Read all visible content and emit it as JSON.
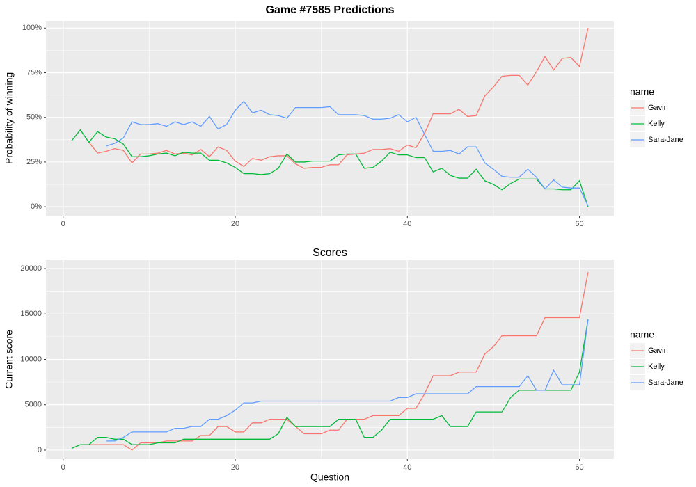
{
  "chart_data": [
    {
      "type": "line",
      "title": "Game #7585 Predictions",
      "ylabel": "Probability of winning",
      "legend_title": "name",
      "legend": "right",
      "grid": true,
      "x": [
        1,
        2,
        3,
        4,
        5,
        6,
        7,
        8,
        9,
        10,
        11,
        12,
        13,
        14,
        15,
        16,
        17,
        18,
        19,
        20,
        21,
        22,
        23,
        24,
        25,
        26,
        27,
        28,
        29,
        30,
        31,
        32,
        33,
        34,
        35,
        36,
        37,
        38,
        39,
        40,
        41,
        42,
        43,
        44,
        45,
        46,
        47,
        48,
        49,
        50,
        51,
        52,
        53,
        54,
        55,
        56,
        57,
        58,
        59,
        60,
        61
      ],
      "xlim": [
        -2,
        64
      ],
      "xticks": [
        0,
        20,
        40,
        60
      ],
      "ylim": [
        -5,
        104
      ],
      "yticks": [
        {
          "value": 0,
          "label": "0%"
        },
        {
          "value": 25,
          "label": "25%"
        },
        {
          "value": 50,
          "label": "50%"
        },
        {
          "value": 75,
          "label": "75%"
        },
        {
          "value": 100,
          "label": "100%"
        }
      ],
      "series": [
        {
          "name": "Gavin",
          "color": "#F8766D",
          "values": [
            null,
            null,
            36,
            30,
            31,
            32.5,
            31.5,
            24.5,
            29.5,
            29.5,
            30,
            31.5,
            29.5,
            30,
            29,
            32,
            28,
            33.5,
            31.5,
            25.5,
            22.5,
            27,
            26,
            28,
            28.5,
            28.5,
            24,
            21.5,
            22,
            22,
            23.5,
            23.5,
            29,
            29.5,
            30,
            32,
            32,
            32.5,
            31,
            34.5,
            33,
            41,
            52,
            52,
            52,
            54.5,
            50.5,
            51,
            62,
            67,
            73,
            73.5,
            73.5,
            68,
            75.5,
            84,
            76.5,
            83,
            83.5,
            78.5,
            100
          ]
        },
        {
          "name": "Kelly",
          "color": "#00BA38",
          "values": [
            37,
            43,
            36,
            42,
            39,
            38,
            35,
            28,
            28,
            28.5,
            29.5,
            30,
            28.5,
            30.5,
            30,
            30,
            26,
            26,
            24.5,
            22,
            18.5,
            18.5,
            18,
            18.5,
            21.5,
            29.5,
            25,
            25,
            25.5,
            25.5,
            25.5,
            29,
            29.5,
            29.5,
            21.5,
            22,
            25.5,
            30.5,
            29,
            29,
            27.5,
            27.5,
            19.5,
            21.5,
            17.5,
            16,
            16,
            21,
            14.5,
            12.5,
            9.5,
            13,
            15.5,
            15.5,
            15.5,
            10,
            10,
            9.5,
            9.5,
            14.5,
            0
          ]
        },
        {
          "name": "Sara-Jane",
          "color": "#619CFF",
          "values": [
            null,
            null,
            null,
            null,
            34,
            35.5,
            38.5,
            47.5,
            46,
            46,
            46.5,
            45,
            47.5,
            46,
            47.5,
            45,
            50.5,
            43.5,
            46,
            54,
            59,
            52.5,
            54,
            51.5,
            51,
            49.5,
            55.5,
            55.5,
            55.5,
            55.5,
            56,
            51.5,
            51.5,
            51.5,
            51,
            49,
            49,
            49.5,
            51.5,
            47.5,
            50,
            40.5,
            31,
            31,
            31.5,
            29.5,
            33.5,
            33.5,
            24.5,
            21,
            17,
            16.5,
            16.5,
            21,
            16.5,
            10,
            15,
            11,
            10.5,
            10.5,
            0.5
          ]
        }
      ]
    },
    {
      "type": "line",
      "title": "Scores",
      "xlabel": "Question",
      "ylabel": "Current score",
      "legend_title": "name",
      "legend": "right",
      "grid": true,
      "x": [
        1,
        2,
        3,
        4,
        5,
        6,
        7,
        8,
        9,
        10,
        11,
        12,
        13,
        14,
        15,
        16,
        17,
        18,
        19,
        20,
        21,
        22,
        23,
        24,
        25,
        26,
        27,
        28,
        29,
        30,
        31,
        32,
        33,
        34,
        35,
        36,
        37,
        38,
        39,
        40,
        41,
        42,
        43,
        44,
        45,
        46,
        47,
        48,
        49,
        50,
        51,
        52,
        53,
        54,
        55,
        56,
        57,
        58,
        59,
        60,
        61
      ],
      "xlim": [
        -2,
        64
      ],
      "xticks": [
        0,
        20,
        40,
        60
      ],
      "ylim": [
        -1000,
        21000
      ],
      "yticks": [
        0,
        5000,
        10000,
        15000,
        20000
      ],
      "series": [
        {
          "name": "Gavin",
          "color": "#F8766D",
          "values": [
            null,
            null,
            600,
            600,
            600,
            600,
            600,
            0,
            800,
            800,
            800,
            1000,
            1000,
            1000,
            1000,
            1600,
            1600,
            2600,
            2600,
            2000,
            2000,
            3000,
            3000,
            3400,
            3400,
            3400,
            2600,
            1800,
            1800,
            1800,
            2200,
            2200,
            3400,
            3400,
            3400,
            3800,
            3800,
            3800,
            3800,
            4600,
            4600,
            6200,
            8200,
            8200,
            8200,
            8600,
            8600,
            8600,
            10600,
            11400,
            12600,
            12600,
            12600,
            12600,
            12600,
            14600,
            14600,
            14600,
            14600,
            14600,
            19600
          ]
        },
        {
          "name": "Kelly",
          "color": "#00BA38",
          "values": [
            200,
            600,
            600,
            1400,
            1400,
            1200,
            1200,
            600,
            600,
            600,
            800,
            800,
            800,
            1200,
            1200,
            1200,
            1200,
            1200,
            1200,
            1200,
            1200,
            1200,
            1200,
            1200,
            1800,
            3600,
            2600,
            2600,
            2600,
            2600,
            2600,
            3400,
            3400,
            3400,
            1400,
            1400,
            2200,
            3400,
            3400,
            3400,
            3400,
            3400,
            3400,
            3800,
            2600,
            2600,
            2600,
            4200,
            4200,
            4200,
            4200,
            5800,
            6600,
            6600,
            6600,
            6600,
            6600,
            6600,
            6600,
            8600,
            14400
          ]
        },
        {
          "name": "Sara-Jane",
          "color": "#619CFF",
          "values": [
            null,
            null,
            null,
            null,
            1000,
            1000,
            1400,
            2000,
            2000,
            2000,
            2000,
            2000,
            2400,
            2400,
            2600,
            2600,
            3400,
            3400,
            3800,
            4400,
            5200,
            5200,
            5400,
            5400,
            5400,
            5400,
            5400,
            5400,
            5400,
            5400,
            5400,
            5400,
            5400,
            5400,
            5400,
            5400,
            5400,
            5400,
            5800,
            5800,
            6200,
            6200,
            6200,
            6200,
            6200,
            6200,
            6200,
            7000,
            7000,
            7000,
            7000,
            7000,
            7000,
            8200,
            6600,
            6600,
            8800,
            7200,
            7200,
            7200,
            14400
          ]
        }
      ]
    }
  ]
}
